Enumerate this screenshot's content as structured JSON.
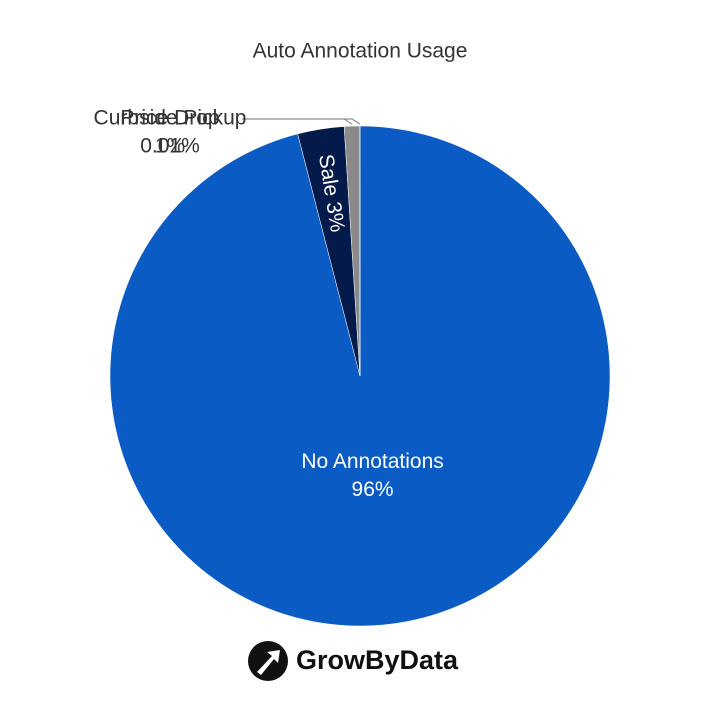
{
  "chart_data": {
    "type": "pie",
    "title": "Auto Annotation Usage",
    "categories": [
      "No Annotations",
      "Sale",
      "Price Drop",
      "Curbside Pickup"
    ],
    "values": [
      96,
      3,
      1,
      0.01
    ],
    "value_labels": [
      "96%",
      "3%",
      "1%",
      "0.01%"
    ],
    "colors": [
      "#0b5bc4",
      "#041a4a",
      "#8a8a8a",
      "#bdbdbd"
    ],
    "logo": "GrowByData"
  }
}
